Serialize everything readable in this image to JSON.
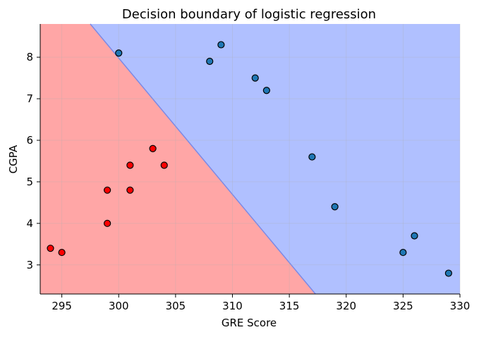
{
  "chart_data": {
    "type": "scatter",
    "title": "Decision boundary of logistic regression",
    "xlabel": "GRE Score",
    "ylabel": "CGPA",
    "xlim": [
      293.1,
      330
    ],
    "ylim": [
      2.3,
      8.8
    ],
    "xticks": [
      295,
      300,
      305,
      310,
      315,
      320,
      325,
      330
    ],
    "yticks": [
      3,
      4,
      5,
      6,
      7,
      8
    ],
    "grid": true,
    "decision_boundary": {
      "points": [
        [
          297.5,
          8.8
        ],
        [
          317.3,
          2.3
        ]
      ],
      "class_0_color": "#ffa6a6",
      "class_1_color": "#b0c0ff",
      "line_color": "#7c8ae6"
    },
    "series": [
      {
        "class": 0,
        "color": "#ff0000",
        "points": [
          {
            "x": 294,
            "y": 3.4
          },
          {
            "x": 295,
            "y": 3.3
          },
          {
            "x": 299,
            "y": 4.0
          },
          {
            "x": 299,
            "y": 4.8
          },
          {
            "x": 301,
            "y": 4.8
          },
          {
            "x": 301,
            "y": 5.4
          },
          {
            "x": 303,
            "y": 5.8
          },
          {
            "x": 304,
            "y": 5.4
          }
        ]
      },
      {
        "class": 1,
        "color": "#1f77b4",
        "points": [
          {
            "x": 300,
            "y": 8.1
          },
          {
            "x": 308,
            "y": 7.9
          },
          {
            "x": 309,
            "y": 8.3
          },
          {
            "x": 312,
            "y": 7.5
          },
          {
            "x": 313,
            "y": 7.2
          },
          {
            "x": 317,
            "y": 5.6
          },
          {
            "x": 319,
            "y": 4.4
          },
          {
            "x": 325,
            "y": 3.3
          },
          {
            "x": 326,
            "y": 3.7
          },
          {
            "x": 329,
            "y": 2.8
          }
        ]
      }
    ]
  }
}
